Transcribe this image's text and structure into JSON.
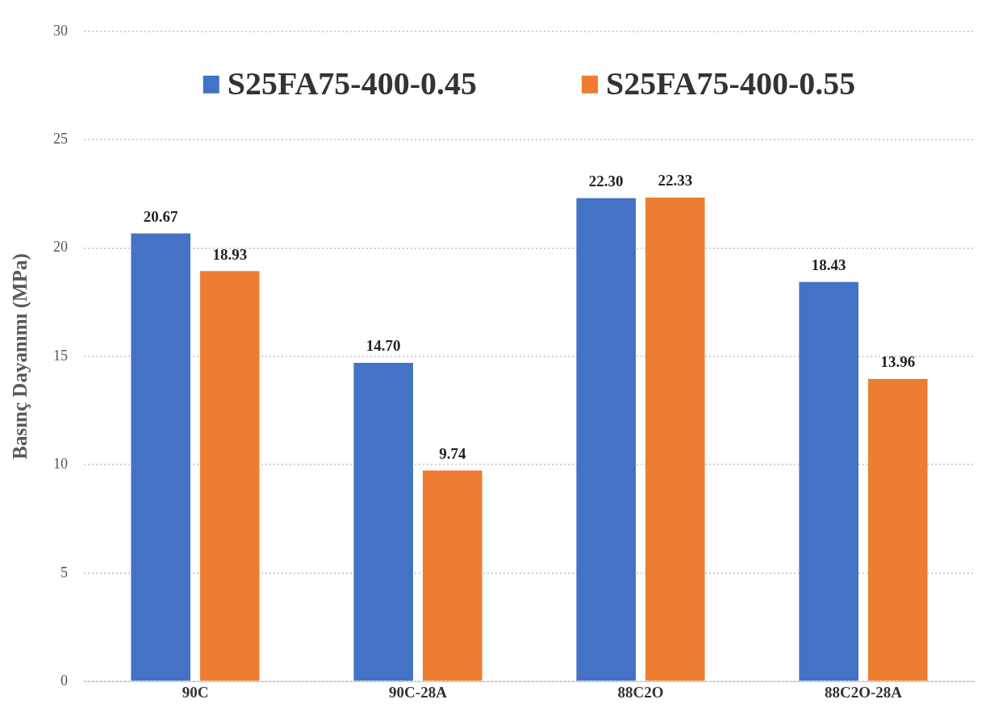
{
  "chart_data": {
    "type": "bar",
    "ylabel": "Basınç Dayanımı (MPa)",
    "categories": [
      "90C",
      "90C-28A",
      "88C2O",
      "88C2O-28A"
    ],
    "series": [
      {
        "name": "S25FA75-400-0.45",
        "color": "#4472c4",
        "values": [
          20.67,
          14.7,
          22.3,
          18.43
        ],
        "value_labels": [
          "20.67",
          "14.70",
          "22.30",
          "18.43"
        ]
      },
      {
        "name": "S25FA75-400-0.55",
        "color": "#ed7d31",
        "values": [
          18.93,
          9.74,
          22.33,
          13.96
        ],
        "value_labels": [
          "18.93",
          "9.74",
          "22.33",
          "13.96"
        ]
      }
    ],
    "ylim": [
      0,
      30
    ],
    "yticks": [
      0,
      5,
      10,
      15,
      20,
      25,
      30
    ],
    "grid": "y",
    "legend": "top"
  }
}
